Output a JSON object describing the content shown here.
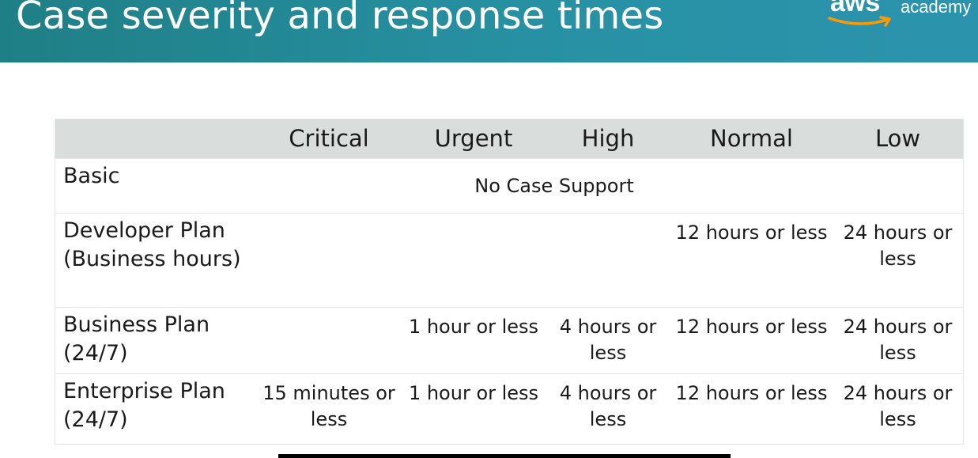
{
  "header": {
    "title": "Case severity and response times",
    "logo": {
      "wordmark": "aws",
      "product": "academy"
    }
  },
  "table": {
    "columns": [
      "",
      "Critical",
      "Urgent",
      "High",
      "Normal",
      "Low"
    ],
    "rows": [
      {
        "plan_line1": "Basic",
        "plan_line2": "",
        "merged_text": "No Case Support"
      },
      {
        "plan_line1": "Developer Plan",
        "plan_line2": "(Business hours)",
        "critical": "",
        "urgent": "",
        "high": "",
        "normal": "12 hours or less",
        "low": "24 hours or less"
      },
      {
        "plan_line1": "Business Plan",
        "plan_line2": "(24/7)",
        "critical": "",
        "urgent": "1 hour or less",
        "high": "4 hours or less",
        "normal": "12 hours or less",
        "low": "24 hours or less"
      },
      {
        "plan_line1": "Enterprise Plan",
        "plan_line2": "(24/7)",
        "critical": "15 minutes or less",
        "urgent": "1 hour or less",
        "high": "4 hours or less",
        "normal": "12 hours or less",
        "low": "24 hours or less"
      }
    ]
  },
  "colors": {
    "header_bg": "#2791a3",
    "table_header_bg": "#d9dedc",
    "logo_smile": "#ff9900"
  }
}
